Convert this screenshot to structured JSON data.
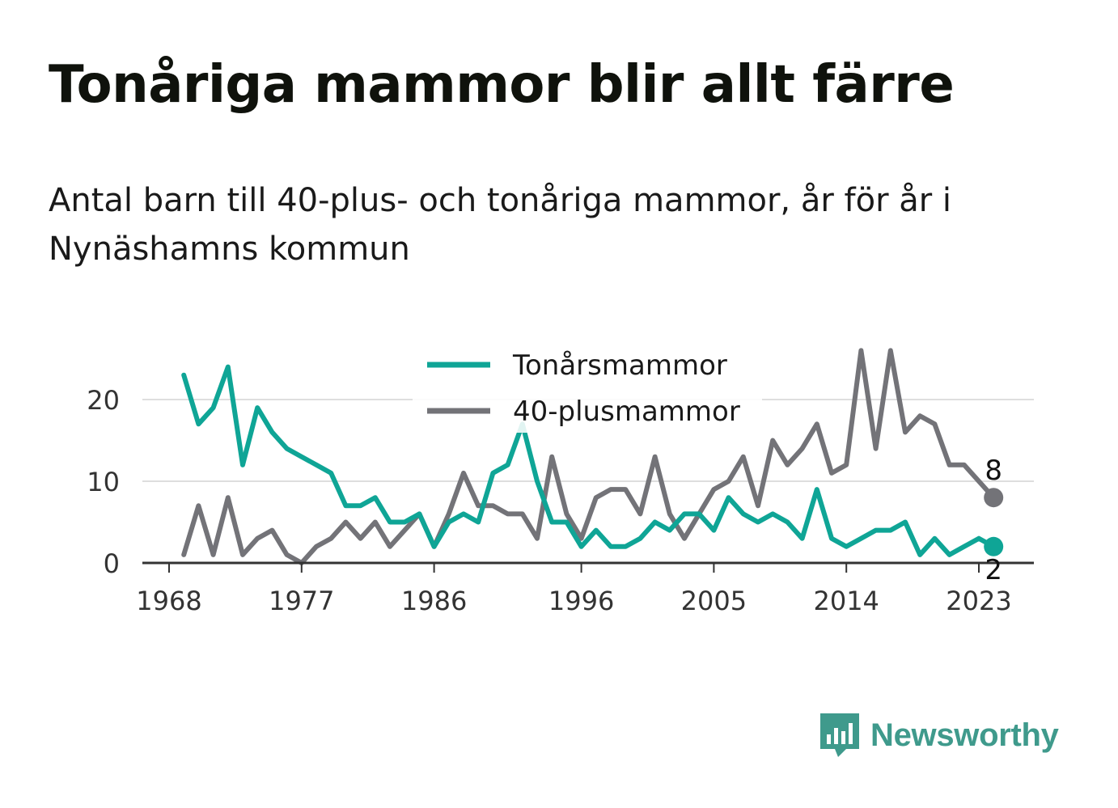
{
  "title": "Tonåriga mammor blir allt färre",
  "subtitle": "Antal barn till 40-plus- och tonåriga mammor, år för år i Nynäshamns kommun",
  "brand": {
    "name": "Newsworthy",
    "icon": "newsworthy-logo-icon",
    "color": "#3f9a8c"
  },
  "chart_data": {
    "type": "line",
    "x_ticks": [
      1968,
      1977,
      1986,
      1996,
      2005,
      2014,
      2023
    ],
    "y_ticks": [
      0,
      10,
      20
    ],
    "xlim": [
      1967,
      2027
    ],
    "ylim": [
      0,
      27
    ],
    "grid": true,
    "legend_position": "top-center",
    "x": [
      1969,
      1970,
      1971,
      1972,
      1973,
      1974,
      1975,
      1976,
      1977,
      1978,
      1979,
      1980,
      1981,
      1982,
      1983,
      1984,
      1985,
      1986,
      1987,
      1988,
      1989,
      1990,
      1991,
      1992,
      1993,
      1994,
      1995,
      1996,
      1997,
      1998,
      1999,
      2000,
      2001,
      2002,
      2003,
      2004,
      2005,
      2006,
      2007,
      2008,
      2009,
      2010,
      2011,
      2012,
      2013,
      2014,
      2015,
      2016,
      2017,
      2018,
      2019,
      2020,
      2021,
      2022,
      2023,
      2024
    ],
    "series": [
      {
        "name": "Tonårsmammor",
        "color": "#0fa596",
        "values": [
          23,
          17,
          19,
          24,
          12,
          19,
          16,
          14,
          13,
          12,
          11,
          7,
          7,
          8,
          5,
          5,
          6,
          2,
          5,
          6,
          5,
          11,
          12,
          17,
          10,
          5,
          5,
          2,
          4,
          2,
          2,
          3,
          5,
          4,
          6,
          6,
          4,
          8,
          6,
          5,
          6,
          5,
          3,
          9,
          3,
          2,
          3,
          4,
          4,
          5,
          1,
          3,
          1,
          2,
          3,
          2
        ],
        "end_label": "2"
      },
      {
        "name": "40-plusmammor",
        "color": "#737378",
        "values": [
          1,
          7,
          1,
          8,
          1,
          3,
          4,
          1,
          0,
          2,
          3,
          5,
          3,
          5,
          2,
          4,
          6,
          2,
          6,
          11,
          7,
          7,
          6,
          6,
          3,
          13,
          6,
          3,
          8,
          9,
          9,
          6,
          13,
          6,
          3,
          6,
          9,
          10,
          13,
          7,
          15,
          12,
          14,
          17,
          11,
          12,
          26,
          14,
          26,
          16,
          18,
          17,
          12,
          12,
          10,
          8
        ],
        "end_label": "8"
      }
    ]
  }
}
